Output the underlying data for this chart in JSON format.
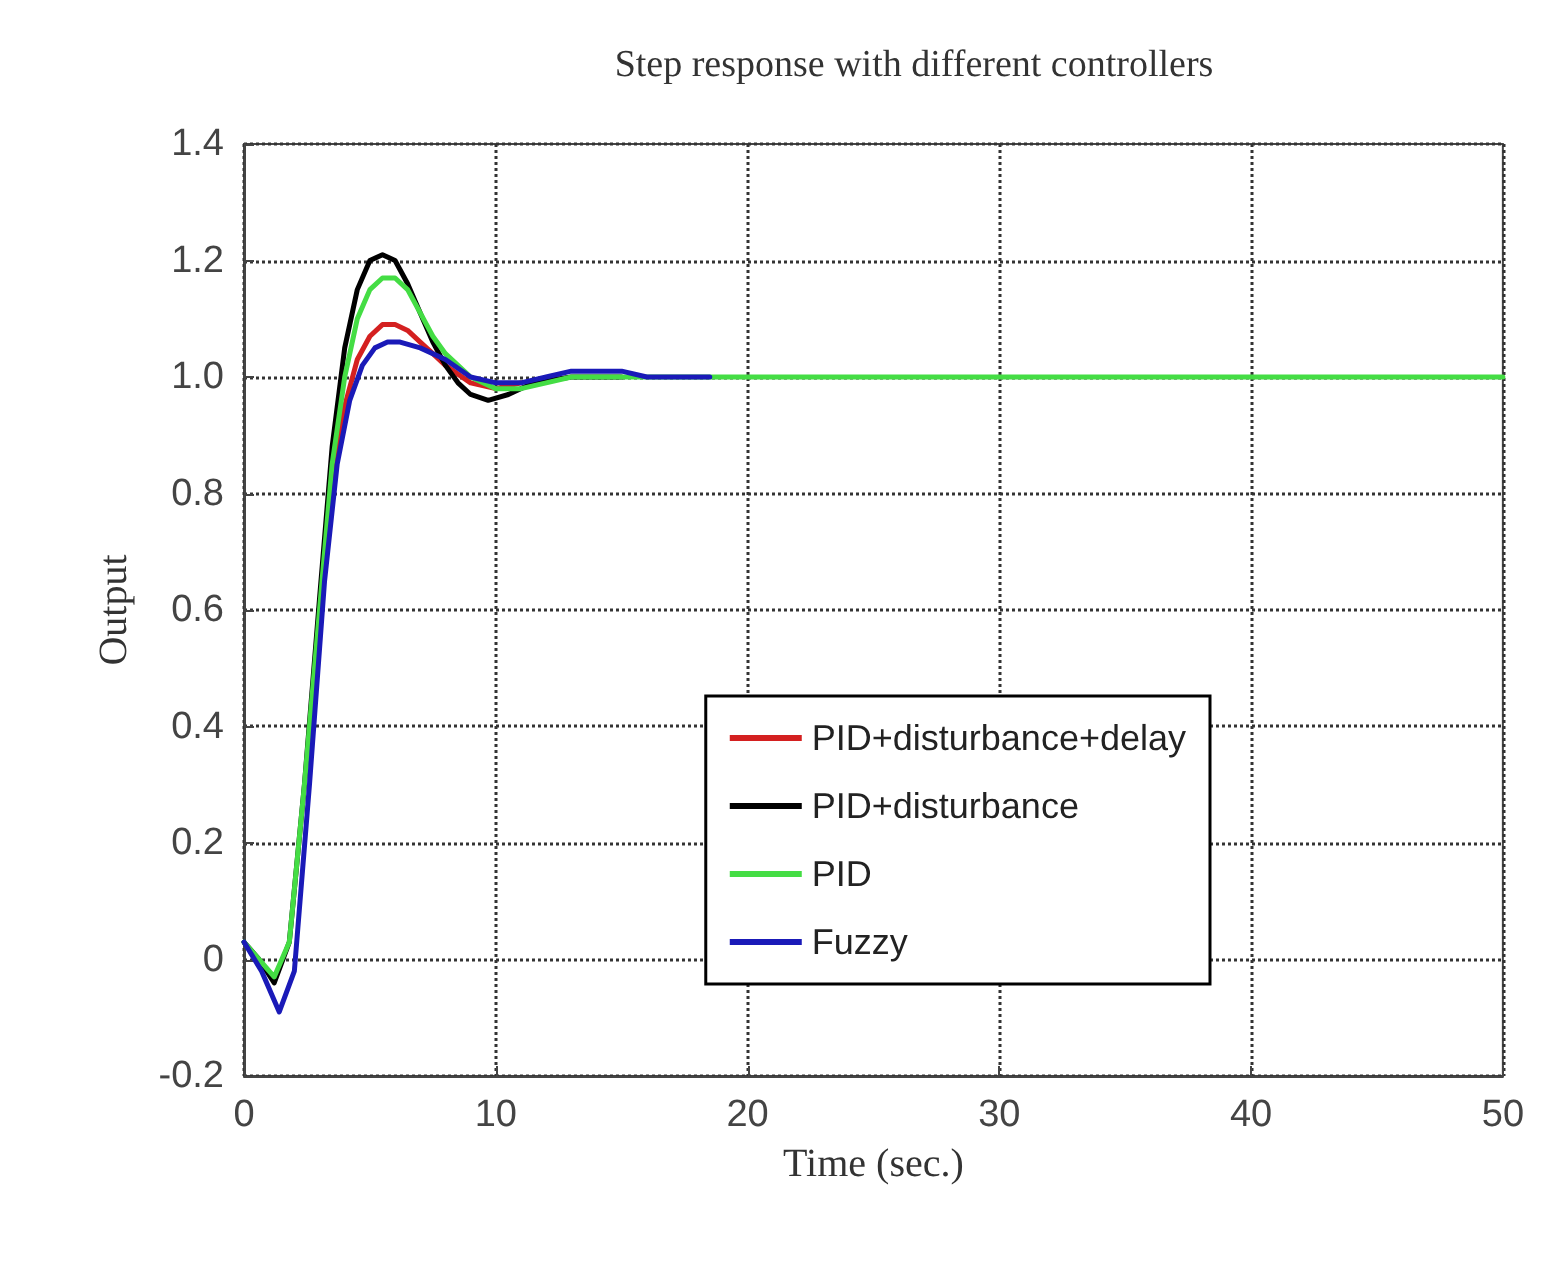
{
  "chart_data": {
    "type": "line",
    "title": "Step response with different controllers",
    "xlabel": "Time (sec.)",
    "ylabel": "Output",
    "xlim": [
      0,
      50
    ],
    "xticks": [
      0,
      10,
      20,
      30,
      40,
      50
    ],
    "ylim": [
      -0.2,
      1.4
    ],
    "yticks": [
      -0.2,
      0,
      0.2,
      0.4,
      0.6,
      0.8,
      {
        "value": 1,
        "label": "1.0"
      },
      1.2,
      1.4
    ],
    "grid": true,
    "legend": "right",
    "marker": "none",
    "line_style": "solid",
    "series": [
      {
        "name": "PID+disturbance+delay",
        "color": "#d42020",
        "x": [
          3,
          3.5,
          4,
          4.5,
          5,
          5.5,
          6,
          6.5,
          7,
          7.5,
          8,
          9,
          10,
          11
        ],
        "values": [
          0.6,
          0.82,
          0.95,
          1.03,
          1.07,
          1.09,
          1.09,
          1.08,
          1.06,
          1.04,
          1.02,
          0.99,
          0.98,
          0.99
        ]
      },
      {
        "name": "PID+disturbance",
        "color": "#000000",
        "x": [
          0,
          0.6,
          1.2,
          1.8,
          2.4,
          3,
          3.5,
          4,
          4.5,
          5,
          5.5,
          6,
          6.5,
          7,
          7.5,
          8,
          8.5,
          9,
          9.7,
          10.5,
          11.5,
          13,
          15
        ],
        "values": [
          0.03,
          0.0,
          -0.04,
          0.03,
          0.3,
          0.62,
          0.88,
          1.05,
          1.15,
          1.2,
          1.21,
          1.2,
          1.16,
          1.11,
          1.06,
          1.02,
          0.99,
          0.97,
          0.96,
          0.97,
          0.99,
          1.0,
          1.0
        ]
      },
      {
        "name": "PID",
        "color": "#44dd44",
        "x": [
          0,
          0.6,
          1.2,
          1.8,
          2.4,
          3,
          3.5,
          4,
          4.5,
          5,
          5.5,
          6,
          6.5,
          7,
          7.5,
          8,
          9,
          10,
          11,
          12,
          13,
          15,
          20,
          30,
          40,
          50
        ],
        "values": [
          0.03,
          0.0,
          -0.03,
          0.03,
          0.3,
          0.6,
          0.85,
          1.0,
          1.1,
          1.15,
          1.17,
          1.17,
          1.15,
          1.11,
          1.07,
          1.04,
          1.0,
          0.98,
          0.98,
          0.99,
          1.0,
          1.0,
          1.0,
          1.0,
          1.0,
          1.0
        ]
      },
      {
        "name": "Fuzzy",
        "color": "#1a1ab8",
        "x": [
          0,
          0.7,
          1.4,
          2,
          2.6,
          3.2,
          3.7,
          4.2,
          4.7,
          5.2,
          5.7,
          6.2,
          7,
          8,
          9,
          10,
          11,
          12,
          13,
          14,
          15,
          16,
          18.5
        ],
        "values": [
          0.03,
          -0.02,
          -0.09,
          -0.02,
          0.3,
          0.65,
          0.85,
          0.96,
          1.02,
          1.05,
          1.06,
          1.06,
          1.05,
          1.03,
          1.0,
          0.99,
          0.99,
          1.0,
          1.01,
          1.01,
          1.01,
          1.0,
          1.0
        ]
      }
    ]
  }
}
